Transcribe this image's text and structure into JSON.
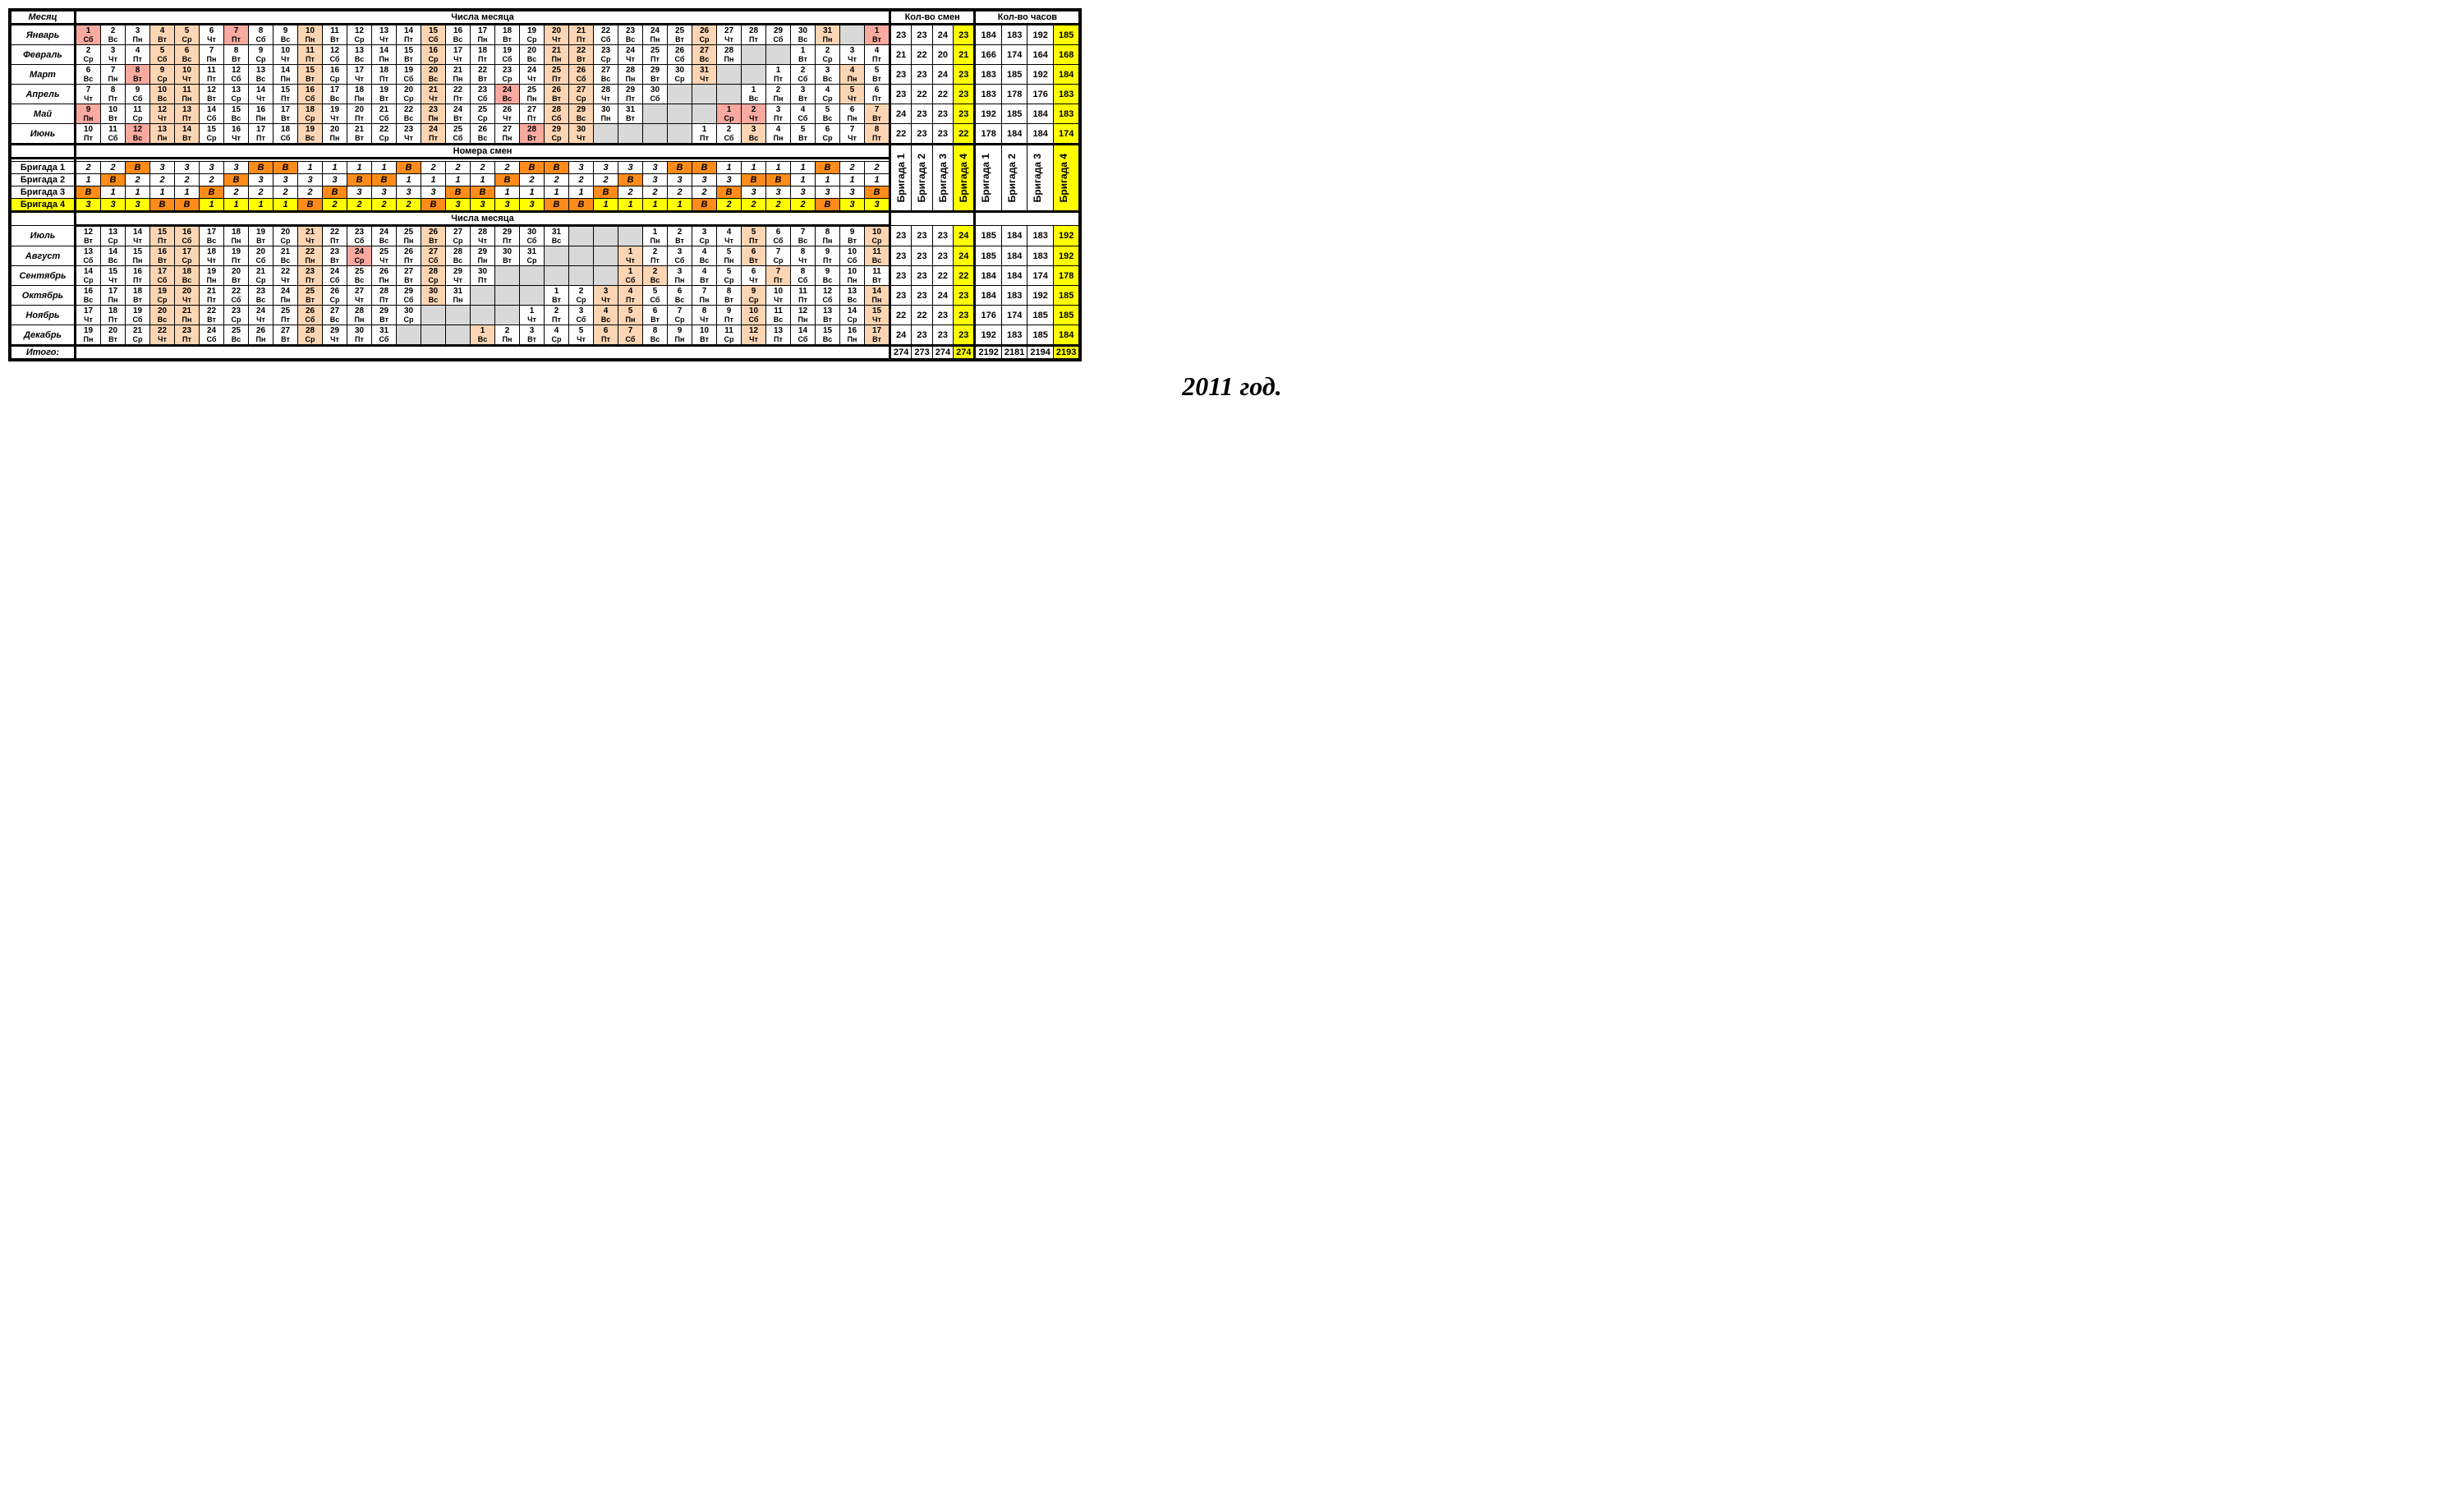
{
  "caption": "2011 год.",
  "headers": {
    "month": "Месяц",
    "days": "Числа месяца",
    "shifts": "Кол-во  смен",
    "hours": "Кол-во  часов",
    "shiftNums": "Номера смен",
    "total": "Итого:"
  },
  "weekdays": [
    "Пн",
    "Вт",
    "Ср",
    "Чт",
    "Пт",
    "Сб",
    "Вс"
  ],
  "colors": {
    "pink": "#f8a9a0",
    "tan": "#fcd5b4",
    "yellow": "#ffff00",
    "orange": "#ff8c1a",
    "gray": "#d9d9d9",
    "white": "#ffffff"
  },
  "monthDays": {
    "Январь": 31,
    "Февраль": 28,
    "Март": 31,
    "Апрель": 30,
    "Май": 31,
    "Июнь": 30,
    "Июль": 31,
    "Август": 31,
    "Сентябрь": 30,
    "Октябрь": 31,
    "Ноябрь": 30,
    "Декабрь": 31
  },
  "months1": [
    {
      "name": "Январь",
      "start": 1,
      "startDow": 5,
      "pad": 1,
      "shifts": [
        23,
        23,
        24,
        23
      ],
      "hours": [
        184,
        183,
        192,
        185
      ],
      "special": {
        "1": "pink",
        "4": "tan",
        "5": "tan",
        "7": "pink",
        "10": "tan",
        "15": "tan",
        "20": "tan",
        "21": "tan",
        "26": "tan",
        "31": "tan"
      }
    },
    {
      "name": "Февраль",
      "start": 2,
      "startDow": 2,
      "pad": 4,
      "shifts": [
        21,
        22,
        20,
        21
      ],
      "hours": [
        166,
        174,
        164,
        168
      ],
      "special": {
        "5": "tan",
        "6": "tan",
        "11": "tan",
        "16": "tan",
        "21": "tan",
        "22": "tan",
        "27": "tan"
      }
    },
    {
      "name": "Март",
      "start": 6,
      "startDow": 6,
      "pad": 5,
      "shifts": [
        23,
        23,
        24,
        23
      ],
      "hours": [
        183,
        185,
        192,
        184
      ],
      "special": {
        "8": "pink",
        "9": "tan",
        "10": "tan",
        "15": "tan",
        "20": "tan",
        "25": "tan",
        "26": "tan",
        "31": "tan",
        "4": "tan"
      }
    },
    {
      "name": "Апрель",
      "start": 7,
      "startDow": 3,
      "pad": 6,
      "shifts": [
        23,
        22,
        22,
        23
      ],
      "hours": [
        183,
        178,
        176,
        183
      ],
      "special": {
        "10": "tan",
        "11": "tan",
        "16": "tan",
        "21": "tan",
        "24": "pink",
        "26": "tan",
        "27": "tan",
        "5": "tan"
      }
    },
    {
      "name": "Май",
      "start": 9,
      "startDow": 0,
      "pad": 7,
      "shifts": [
        24,
        23,
        23,
        23
      ],
      "hours": [
        192,
        185,
        184,
        183
      ],
      "special": {
        "9": "pink",
        "12": "tan",
        "13": "tan",
        "18": "tan",
        "23": "tan",
        "28": "tan",
        "29": "tan",
        "1": "pink",
        "2": "pink",
        "7": "tan"
      }
    },
    {
      "name": "Июнь",
      "start": 10,
      "startDow": 4,
      "pad": 8,
      "shifts": [
        22,
        23,
        23,
        22
      ],
      "hours": [
        178,
        184,
        184,
        174
      ],
      "special": {
        "12": "pink",
        "13": "tan",
        "14": "tan",
        "19": "tan",
        "24": "tan",
        "28": "pink",
        "29": "tan",
        "30": "tan",
        "3": "tan",
        "8": "tan"
      }
    }
  ],
  "months2": [
    {
      "name": "Июль",
      "start": 12,
      "startDow": 1,
      "pad": 10,
      "shifts": [
        23,
        23,
        23,
        24
      ],
      "hours": [
        185,
        184,
        183,
        192
      ],
      "special": {
        "15": "tan",
        "16": "tan",
        "21": "tan",
        "26": "tan",
        "5": "tan",
        "10": "tan"
      }
    },
    {
      "name": "Август",
      "start": 13,
      "startDow": 5,
      "pad": 11,
      "shifts": [
        23,
        23,
        23,
        24
      ],
      "hours": [
        185,
        184,
        183,
        192
      ],
      "special": {
        "16": "tan",
        "17": "tan",
        "22": "tan",
        "24": "pink",
        "27": "tan",
        "1": "tan",
        "6": "tan",
        "11": "tan"
      }
    },
    {
      "name": "Сентябрь",
      "start": 14,
      "startDow": 2,
      "pad": 11,
      "shifts": [
        23,
        23,
        22,
        22
      ],
      "hours": [
        184,
        184,
        174,
        178
      ],
      "special": {
        "17": "tan",
        "18": "tan",
        "23": "tan",
        "28": "tan",
        "1": "tan",
        "2": "tan",
        "7": "tan",
        "12": "tan"
      }
    },
    {
      "name": "Октябрь",
      "start": 16,
      "startDow": 6,
      "pad": 14,
      "shifts": [
        23,
        23,
        24,
        23
      ],
      "hours": [
        184,
        183,
        192,
        185
      ],
      "special": {
        "19": "tan",
        "20": "tan",
        "25": "tan",
        "30": "tan",
        "3": "tan",
        "4": "tan",
        "9": "tan",
        "14": "tan"
      }
    },
    {
      "name": "Ноябрь",
      "start": 17,
      "startDow": 3,
      "pad": 15,
      "shifts": [
        22,
        22,
        23,
        23
      ],
      "hours": [
        176,
        174,
        185,
        185
      ],
      "special": {
        "20": "tan",
        "21": "tan",
        "26": "tan",
        "4": "tan",
        "5": "tan",
        "10": "tan",
        "15": "tan"
      }
    },
    {
      "name": "Декабрь",
      "start": 19,
      "startDow": 0,
      "pad": 17,
      "shifts": [
        24,
        23,
        23,
        23
      ],
      "hours": [
        192,
        183,
        185,
        184
      ],
      "special": {
        "22": "tan",
        "23": "tan",
        "28": "tan",
        "1": "tan",
        "6": "tan",
        "7": "tan",
        "12": "tan",
        "17": "tan"
      }
    }
  ],
  "brigades": [
    {
      "name": "Бригада 1",
      "cells": [
        "2",
        "2",
        "В",
        "3",
        "3",
        "3",
        "3",
        "В",
        "В",
        "1",
        "1",
        "1",
        "1",
        "В",
        "2",
        "2",
        "2",
        "2",
        "В",
        "В",
        "3",
        "3",
        "3",
        "3",
        "В",
        "В",
        "1",
        "1",
        "1",
        "1",
        "В",
        "2",
        "2"
      ]
    },
    {
      "name": "Бригада 2",
      "cells": [
        "1",
        "В",
        "2",
        "2",
        "2",
        "2",
        "В",
        "3",
        "3",
        "3",
        "3",
        "В",
        "В",
        "1",
        "1",
        "1",
        "1",
        "В",
        "2",
        "2",
        "2",
        "2",
        "В",
        "3",
        "3",
        "3",
        "3",
        "В",
        "В",
        "1",
        "1",
        "1",
        "1"
      ]
    },
    {
      "name": "Бригада 3",
      "cells": [
        "В",
        "1",
        "1",
        "1",
        "1",
        "В",
        "2",
        "2",
        "2",
        "2",
        "В",
        "3",
        "3",
        "3",
        "3",
        "В",
        "В",
        "1",
        "1",
        "1",
        "1",
        "В",
        "2",
        "2",
        "2",
        "2",
        "В",
        "3",
        "3",
        "3",
        "3",
        "3",
        "В"
      ]
    },
    {
      "name": "Бригада 4",
      "hl": true,
      "cells": [
        "3",
        "3",
        "3",
        "В",
        "В",
        "1",
        "1",
        "1",
        "1",
        "В",
        "2",
        "2",
        "2",
        "2",
        "В",
        "3",
        "3",
        "3",
        "3",
        "В",
        "В",
        "1",
        "1",
        "1",
        "1",
        "В",
        "2",
        "2",
        "2",
        "2",
        "В",
        "3",
        "3"
      ]
    }
  ],
  "brigLabels": [
    "Бригада 1",
    "Бригада 2",
    "Бригада 3",
    "Бригада 4"
  ],
  "totals": {
    "shifts": [
      274,
      273,
      274,
      274
    ],
    "hours": [
      2192,
      2181,
      2194,
      2193
    ]
  },
  "gridCols": 33
}
